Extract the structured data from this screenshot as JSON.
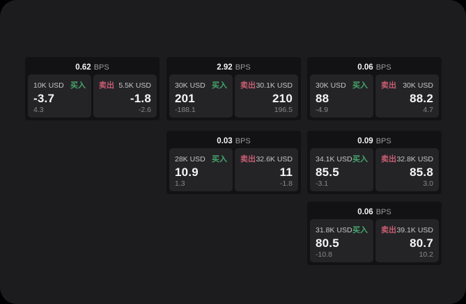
{
  "labels": {
    "bps_unit": "BPS",
    "buy": "买入",
    "sell": "卖出"
  },
  "colors": {
    "background": "#1c1c1e",
    "card": "#121214",
    "panel": "#242427",
    "buy": "#46a56a",
    "sell": "#c75d72",
    "text_primary": "#f5f5f6",
    "text_label": "#c6c6c8",
    "text_muted": "#88888a",
    "text_unit": "#9a9a9c"
  },
  "cards": [
    {
      "bps": "0.62",
      "buy": {
        "amount": "10K USD",
        "value": "-3.7",
        "sub": "4.3"
      },
      "sell": {
        "amount": "5.5K USD",
        "value": "-1.8",
        "sub": "-2.6"
      }
    },
    {
      "bps": "2.92",
      "buy": {
        "amount": "30K USD",
        "value": "201",
        "sub": "-188.1"
      },
      "sell": {
        "amount": "30.1K USD",
        "value": "210",
        "sub": "196.5"
      }
    },
    {
      "bps": "0.06",
      "buy": {
        "amount": "30K USD",
        "value": "88",
        "sub": "-4.9"
      },
      "sell": {
        "amount": "30K USD",
        "value": "88.2",
        "sub": "4.7"
      }
    },
    {
      "bps": "0.03",
      "buy": {
        "amount": "28K USD",
        "value": "10.9",
        "sub": "1.3"
      },
      "sell": {
        "amount": "32.6K USD",
        "value": "11",
        "sub": "-1.8"
      }
    },
    {
      "bps": "0.09",
      "buy": {
        "amount": "34.1K USD",
        "value": "85.5",
        "sub": "-3.1"
      },
      "sell": {
        "amount": "32.8K USD",
        "value": "85.8",
        "sub": "3.0"
      }
    },
    {
      "bps": "0.06",
      "buy": {
        "amount": "31.8K USD",
        "value": "80.5",
        "sub": "-10.8"
      },
      "sell": {
        "amount": "39.1K USD",
        "value": "80.7",
        "sub": "10.2"
      }
    }
  ]
}
